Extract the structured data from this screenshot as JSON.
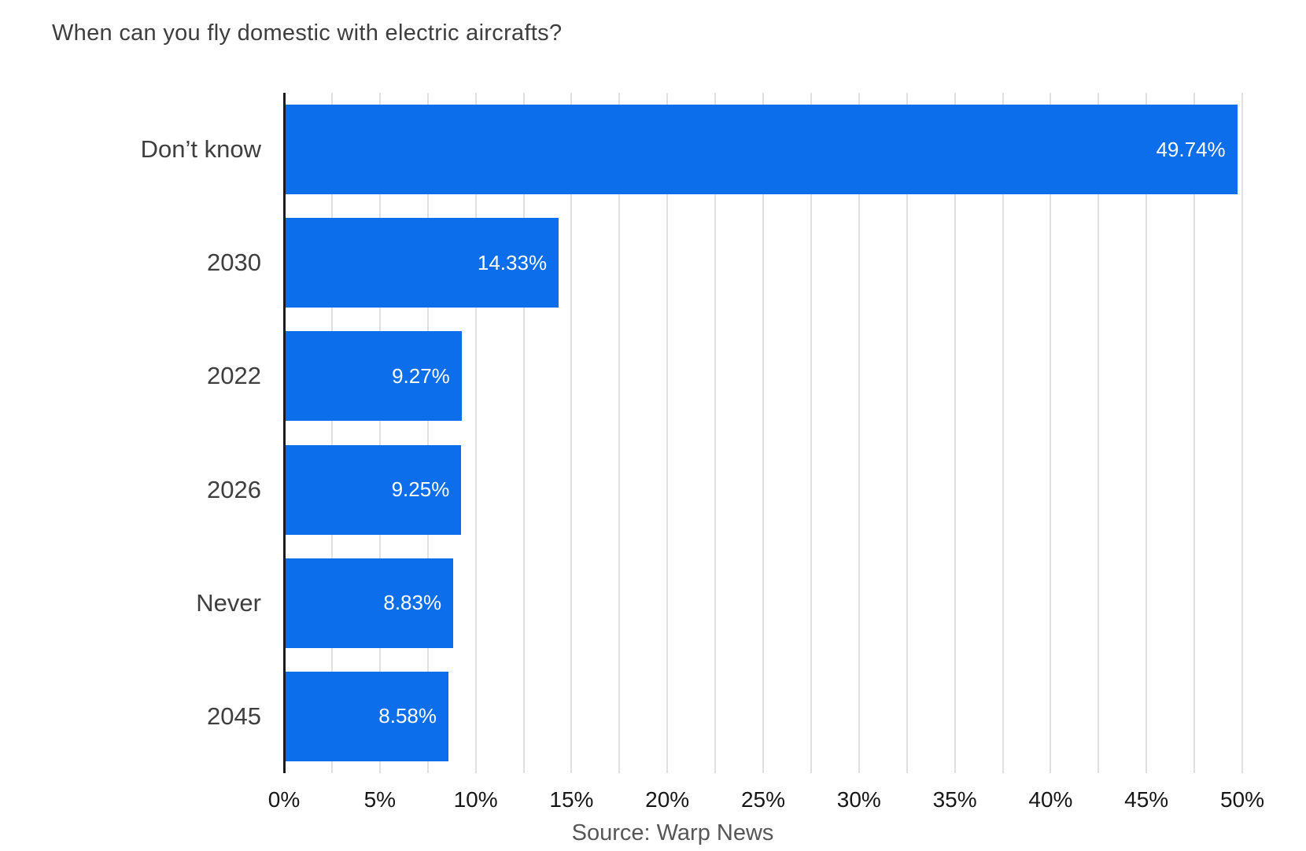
{
  "chart_data": {
    "type": "bar",
    "orientation": "horizontal",
    "title": "When can you fly domestic with electric aircrafts?",
    "categories": [
      "Don’t know",
      "2030",
      "2022",
      "2026",
      "Never",
      "2045"
    ],
    "values": [
      49.74,
      14.33,
      9.27,
      9.25,
      8.83,
      8.58
    ],
    "value_labels": [
      "49.74%",
      "14.33%",
      "9.27%",
      "9.25%",
      "8.83%",
      "8.58%"
    ],
    "x_ticks": [
      "0%",
      "5%",
      "10%",
      "15%",
      "20%",
      "25%",
      "30%",
      "35%",
      "40%",
      "45%",
      "50%"
    ],
    "x_tick_step_percent": 5,
    "xlim": [
      0,
      50
    ],
    "gridline_interval_percent": 2.5,
    "grid": "vertical",
    "legend_position": "none",
    "source": "Source: Warp News",
    "colors": {
      "bar": "#0d6eeb",
      "bar_label": "#ffffff",
      "title": "#3e3e3e",
      "category_label": "#3e3e3e",
      "tick_label": "#161616",
      "source": "#575757",
      "gridline": "#e0e0e0",
      "axis_line": "#1c1c1c"
    }
  }
}
